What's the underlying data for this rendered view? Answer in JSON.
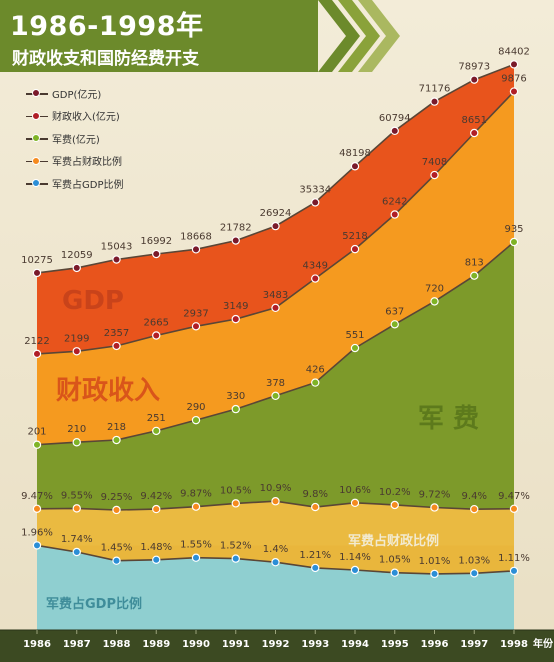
{
  "title": "1986-1998年",
  "subtitle": "财政收支和国防经费开支",
  "chart_data": {
    "type": "area",
    "x": [
      "1986",
      "1987",
      "1988",
      "1989",
      "1990",
      "1991",
      "1992",
      "1993",
      "1994",
      "1995",
      "1996",
      "1997",
      "1998"
    ],
    "x_suffix_label": "年份",
    "series": [
      {
        "name": "GDP(亿元)",
        "color": "#e8541c",
        "dot": "#7a1a2a",
        "area_label": "GDP",
        "values": [
          10275,
          12059,
          15043,
          16992,
          18668,
          21782,
          26924,
          35334,
          48198,
          60794,
          71176,
          78973,
          84402
        ],
        "labels": [
          "10275",
          "12059",
          "15043",
          "16992",
          "18668",
          "21782",
          "26924",
          "35334",
          "48198",
          "60794",
          "71176",
          "78973",
          "84402"
        ]
      },
      {
        "name": "财政收入(亿元)",
        "color": "#f59a1f",
        "dot": "#b01e26",
        "area_label": "财政收入",
        "values": [
          2122,
          2199,
          2357,
          2665,
          2937,
          3149,
          3483,
          4349,
          5218,
          6242,
          7408,
          8651,
          9876
        ],
        "labels": [
          "2122",
          "2199",
          "2357",
          "2665",
          "2937",
          "3149",
          "3483",
          "4349",
          "5218",
          "6242",
          "7408",
          "8651",
          "9876"
        ]
      },
      {
        "name": "军费(亿元)",
        "color": "#7d9a2a",
        "dot": "#7fb326",
        "area_label": "军  费",
        "values": [
          201,
          210,
          218,
          251,
          290,
          330,
          378,
          426,
          551,
          637,
          720,
          813,
          935
        ],
        "labels": [
          "201",
          "210",
          "218",
          "251",
          "290",
          "330",
          "378",
          "426",
          "551",
          "637",
          "720",
          "813",
          "935"
        ]
      },
      {
        "name": "军费占财政比例",
        "color": "#e9b63c",
        "dot": "#f58a1e",
        "area_label": "军费占财政比例",
        "values": [
          9.47,
          9.55,
          9.25,
          9.42,
          9.87,
          10.5,
          10.9,
          9.8,
          10.6,
          10.2,
          9.72,
          9.4,
          9.47
        ],
        "labels": [
          "9.47%",
          "9.55%",
          "9.25%",
          "9.42%",
          "9.87%",
          "10.5%",
          "10.9%",
          "9.8%",
          "10.6%",
          "10.2%",
          "9.72%",
          "9.4%",
          "9.47%"
        ]
      },
      {
        "name": "军费占GDP比例",
        "color": "#8fcfd0",
        "dot": "#2b8ed6",
        "area_label": "军费占GDP比例",
        "values": [
          1.96,
          1.74,
          1.45,
          1.48,
          1.55,
          1.52,
          1.4,
          1.21,
          1.14,
          1.05,
          1.01,
          1.03,
          1.11
        ],
        "labels": [
          "1.96%",
          "1.74%",
          "1.45%",
          "1.48%",
          "1.55%",
          "1.52%",
          "1.4%",
          "1.21%",
          "1.14%",
          "1.05%",
          "1.01%",
          "1.03%",
          "1.11%"
        ]
      }
    ]
  }
}
